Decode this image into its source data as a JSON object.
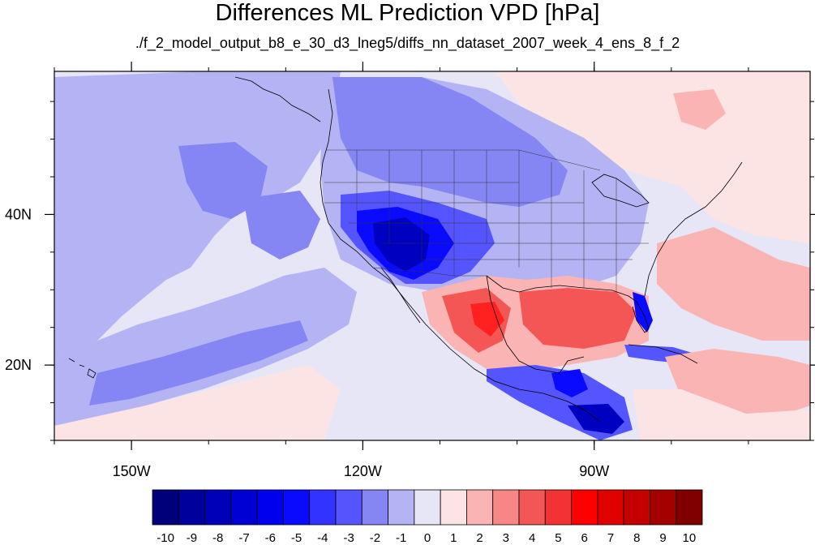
{
  "title": "Differences ML Prediction VPD [hPa]",
  "subtitle": "./f_2_model_output_b8_e_30_d3_lneg5/diffs_nn_dataset_2007_week_4_ens_8_f_2",
  "map": {
    "projection": "cylindrical-equidistant",
    "lon_range": [
      -160,
      -62
    ],
    "lat_range": [
      10,
      59
    ],
    "x_ticks": [
      {
        "lon": -150,
        "label": "150W"
      },
      {
        "lon": -120,
        "label": "120W"
      },
      {
        "lon": -90,
        "label": "90W"
      }
    ],
    "y_ticks": [
      {
        "lat": 40,
        "label": "40N"
      },
      {
        "lat": 20,
        "label": "20N"
      }
    ],
    "boundaries": [
      "coastlines",
      "us-state-borders",
      "country-borders"
    ]
  },
  "colorbar": {
    "labels": [
      "-10",
      "-9",
      "-8",
      "-7",
      "-6",
      "-5",
      "-4",
      "-3",
      "-2",
      "-1",
      "0",
      "1",
      "2",
      "3",
      "4",
      "5",
      "6",
      "7",
      "8",
      "9",
      "10"
    ],
    "colors": [
      "#00007a",
      "#00009c",
      "#0000b8",
      "#0000d4",
      "#0000ee",
      "#0a0aff",
      "#3333ff",
      "#5555ff",
      "#8585f4",
      "#b4b4f4",
      "#e6e6f7",
      "#fde4e4",
      "#fbb4b4",
      "#f78787",
      "#f45555",
      "#f33333",
      "#ff0000",
      "#e00000",
      "#c40000",
      "#a40000",
      "#800000"
    ]
  },
  "field_colors": {
    "background": "#e6e6f7",
    "neg_light": "#b4b4f4",
    "neg_mid": "#8585f4",
    "neg_strong": "#5555ff",
    "neg_deep": "#0a0aff",
    "neg_darkest": "#0000c0",
    "pos_light": "#fde4e4",
    "pos_mid": "#fbb4b4",
    "pos_strong": "#f78787",
    "pos_deep": "#f45555",
    "pos_darkest": "#ff2020"
  }
}
